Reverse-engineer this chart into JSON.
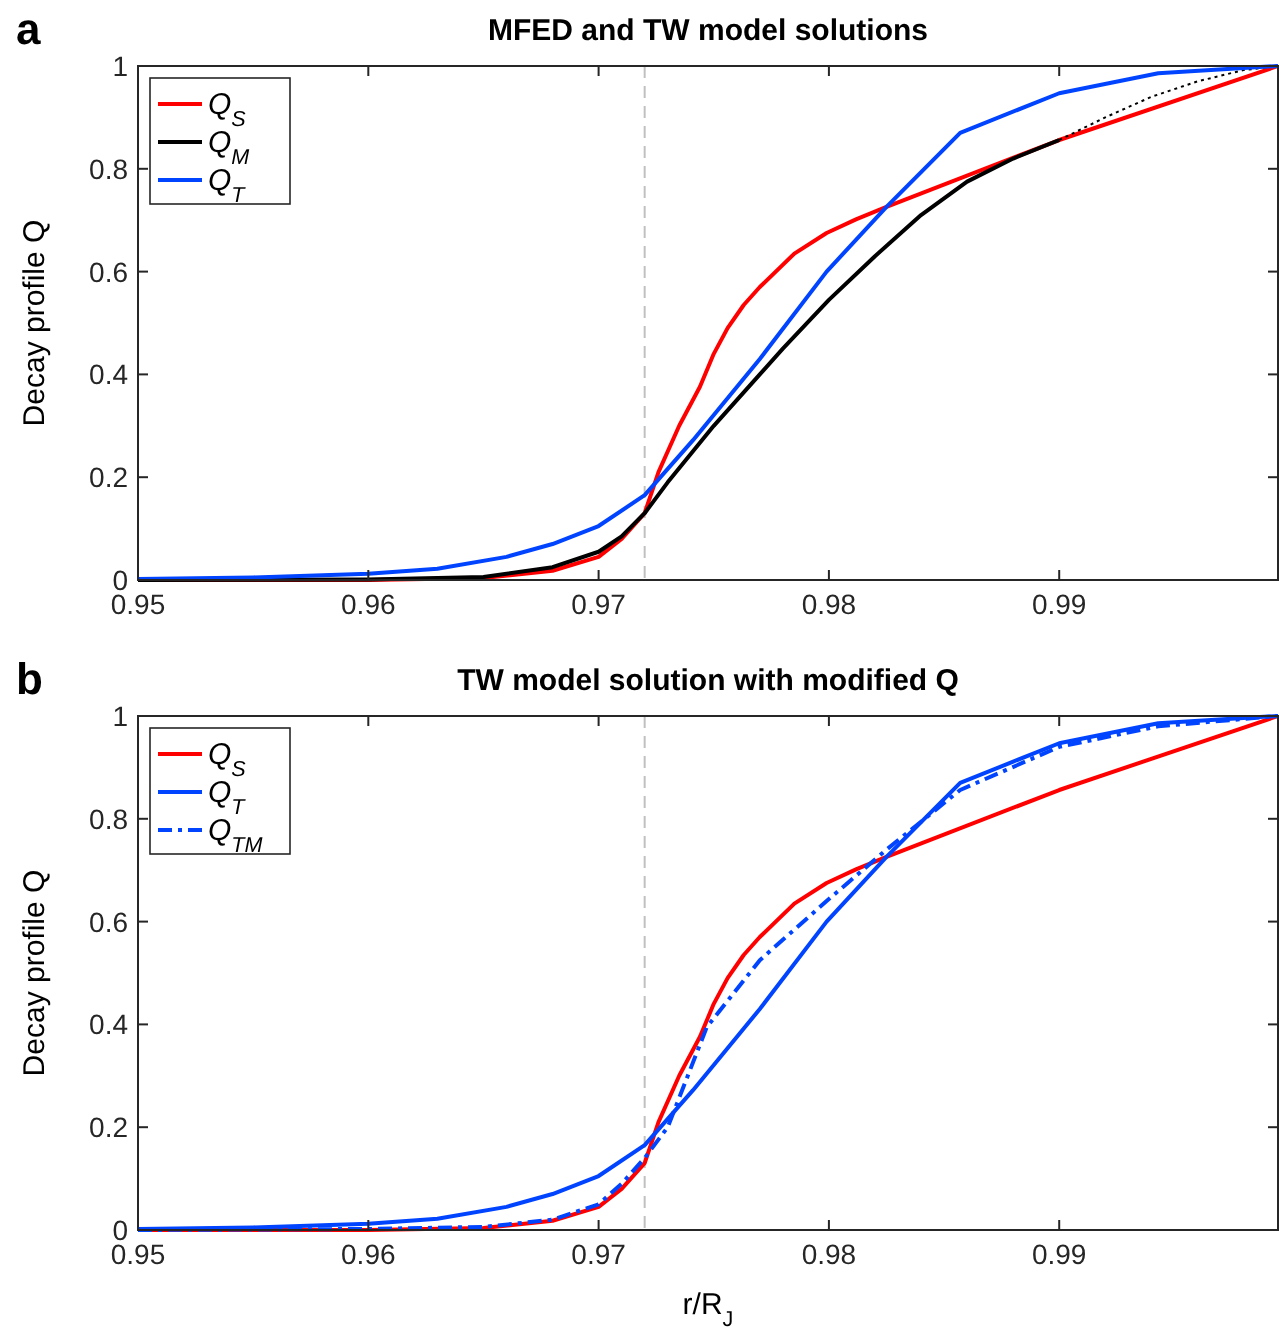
{
  "chart_data": [
    {
      "type": "line",
      "title": "MFED and TW model solutions",
      "ylabel": "Decay profile Q",
      "annotations": [
        "a"
      ],
      "xlim": [
        0.95,
        0.9995
      ],
      "ylim": [
        0,
        1
      ],
      "xticks": [
        0.95,
        0.96,
        0.97,
        0.98,
        0.99
      ],
      "yticks": [
        0,
        0.2,
        0.4,
        0.6,
        0.8,
        1
      ],
      "grid": false,
      "legend": "top left",
      "ref_lines": [
        {
          "axis": "x",
          "value": 0.972,
          "color": "#c0c0c0",
          "line_style": "dashed"
        }
      ],
      "series": [
        {
          "name": "Q$_{S}$",
          "color": "#ff0000",
          "line_style": "solid",
          "x": [
            0.95,
            0.96,
            0.965,
            0.968,
            0.97,
            0.971,
            0.972,
            0.9726,
            0.9735,
            0.9744,
            0.975,
            0.9756,
            0.9763,
            0.977,
            0.9785,
            0.9799,
            0.9812,
            0.9825,
            0.99,
            0.9995
          ],
          "values": [
            0,
            0,
            0.004,
            0.018,
            0.045,
            0.08,
            0.13,
            0.21,
            0.3,
            0.376,
            0.44,
            0.49,
            0.535,
            0.57,
            0.635,
            0.675,
            0.702,
            0.726,
            0.856,
            1
          ]
        },
        {
          "name": "Q$_{M}$",
          "color": "#000000",
          "line_style": "solid",
          "x": [
            0.95,
            0.96,
            0.965,
            0.968,
            0.97,
            0.971,
            0.972,
            0.973,
            0.974,
            0.975,
            0.976,
            0.977,
            0.978,
            0.98,
            0.982,
            0.984,
            0.986,
            0.988,
            0.99
          ],
          "values": [
            0,
            0.001,
            0.006,
            0.025,
            0.055,
            0.085,
            0.13,
            0.19,
            0.245,
            0.3,
            0.35,
            0.4,
            0.45,
            0.545,
            0.63,
            0.71,
            0.775,
            0.82,
            0.856
          ]
        },
        {
          "color": "#000000",
          "line_style": "dotted",
          "x": [
            0.99,
            0.992,
            0.994,
            0.996,
            0.998,
            0.9995
          ],
          "values": [
            0.856,
            0.9,
            0.94,
            0.97,
            0.992,
            1
          ]
        },
        {
          "name": "Q$_{T}$",
          "color": "#0044ff",
          "line_style": "solid",
          "x": [
            0.95,
            0.955,
            0.96,
            0.963,
            0.966,
            0.968,
            0.97,
            0.972,
            0.9741,
            0.977,
            0.9799,
            0.9825,
            0.9857,
            0.99,
            0.9943,
            0.9995
          ],
          "values": [
            0.002,
            0.005,
            0.012,
            0.022,
            0.045,
            0.07,
            0.105,
            0.165,
            0.272,
            0.43,
            0.6,
            0.726,
            0.87,
            0.947,
            0.986,
            1
          ]
        }
      ]
    },
    {
      "type": "line",
      "title": "TW model solution with modified Q",
      "xlabel": "r/R$_{J}$",
      "ylabel": "Decay profile Q",
      "annotations": [
        "b"
      ],
      "xlim": [
        0.95,
        0.9995
      ],
      "ylim": [
        0,
        1
      ],
      "xticks": [
        0.95,
        0.96,
        0.97,
        0.98,
        0.99
      ],
      "yticks": [
        0,
        0.2,
        0.4,
        0.6,
        0.8,
        1
      ],
      "grid": false,
      "legend": "top left",
      "ref_lines": [
        {
          "axis": "x",
          "value": 0.972,
          "color": "#c0c0c0",
          "line_style": "dashed"
        }
      ],
      "series": [
        {
          "name": "Q$_{S}$",
          "color": "#ff0000",
          "line_style": "solid",
          "x": [
            0.95,
            0.96,
            0.965,
            0.968,
            0.97,
            0.971,
            0.972,
            0.9726,
            0.9735,
            0.9744,
            0.975,
            0.9756,
            0.9763,
            0.977,
            0.9785,
            0.9799,
            0.9812,
            0.9825,
            0.99,
            0.9995
          ],
          "values": [
            0,
            0,
            0.004,
            0.018,
            0.045,
            0.08,
            0.13,
            0.21,
            0.3,
            0.376,
            0.44,
            0.49,
            0.535,
            0.57,
            0.635,
            0.675,
            0.702,
            0.726,
            0.856,
            1
          ]
        },
        {
          "name": "Q$_{T}$",
          "color": "#0044ff",
          "line_style": "solid",
          "x": [
            0.95,
            0.955,
            0.96,
            0.963,
            0.966,
            0.968,
            0.97,
            0.972,
            0.9741,
            0.977,
            0.9799,
            0.9825,
            0.9857,
            0.99,
            0.9943,
            0.9995
          ],
          "values": [
            0.002,
            0.005,
            0.012,
            0.022,
            0.045,
            0.07,
            0.105,
            0.165,
            0.272,
            0.43,
            0.6,
            0.726,
            0.87,
            0.947,
            0.986,
            1
          ]
        },
        {
          "name": "Q$_{TM}$",
          "color": "#0044ff",
          "line_style": "dashdot",
          "x": [
            0.95,
            0.96,
            0.965,
            0.968,
            0.97,
            0.971,
            0.972,
            0.973,
            0.9747,
            0.977,
            0.9799,
            0.9825,
            0.9857,
            0.99,
            0.9943,
            0.9995
          ],
          "values": [
            0,
            0.002,
            0.006,
            0.02,
            0.05,
            0.09,
            0.14,
            0.2,
            0.395,
            0.525,
            0.64,
            0.74,
            0.856,
            0.94,
            0.98,
            1
          ]
        }
      ]
    }
  ]
}
